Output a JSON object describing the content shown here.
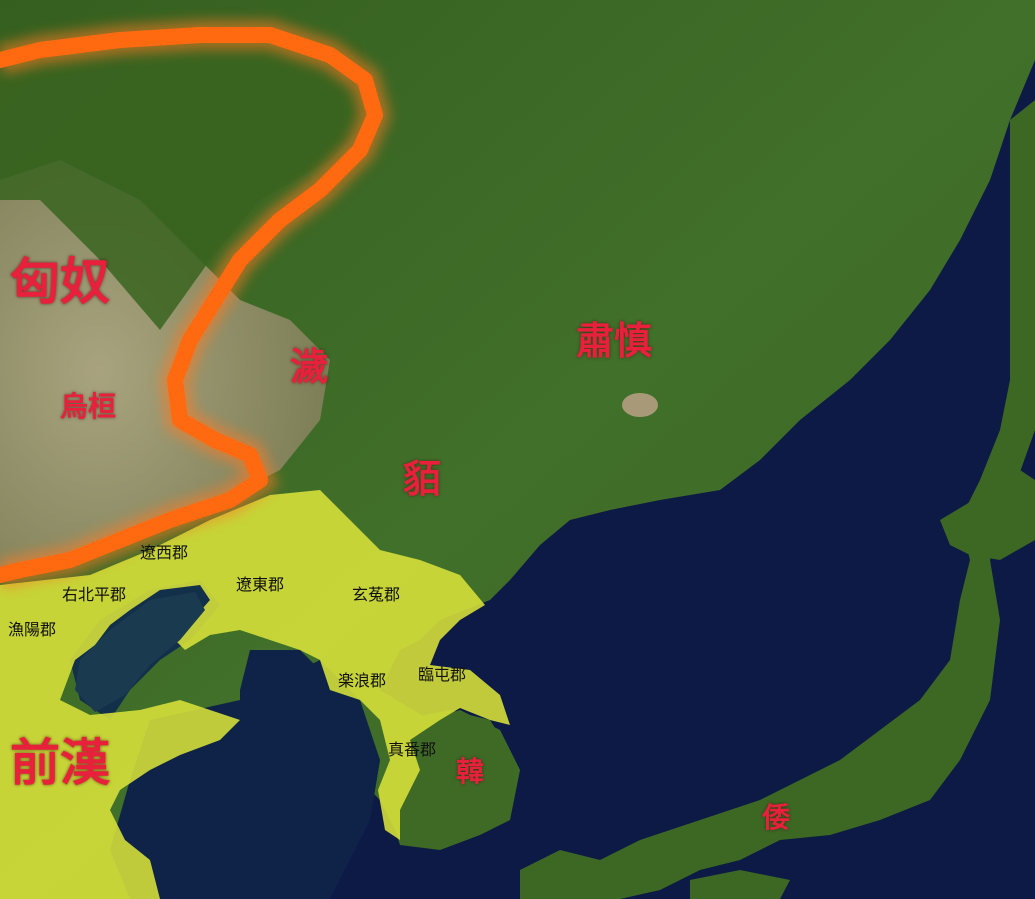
{
  "colors": {
    "sea": "#0d1a45",
    "land": "#3f6a24",
    "steppe": "#a49a78",
    "han_territory": "#d9e23a",
    "xiongnu_border": "#ff6a10",
    "realm_label": "#e8203c",
    "commandery_label": "#111111"
  },
  "realms": {
    "xiongnu": "匈奴",
    "wuhuan": "烏桓",
    "ye": "濊",
    "mo": "貊",
    "sushen": "肅慎",
    "former_han": "前漢",
    "han_korea": "韓",
    "wa": "倭"
  },
  "commanderies": {
    "liaoxi": "遼西郡",
    "youbeiping": "右北平郡",
    "yuyang": "漁陽郡",
    "liaodong": "遼東郡",
    "xuantu": "玄菟郡",
    "lelang": "楽浪郡",
    "lintun": "臨屯郡",
    "zhenfan": "真番郡"
  }
}
